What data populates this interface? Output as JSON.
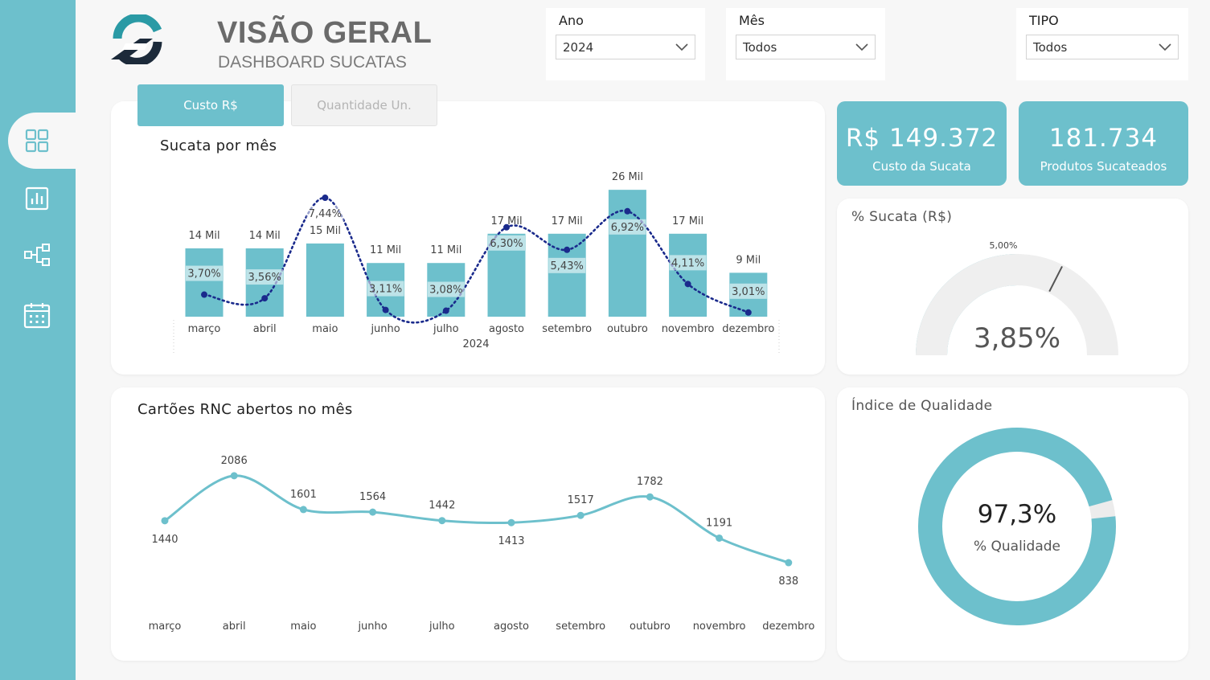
{
  "header": {
    "title": "VISÃO GERAL",
    "subtitle": "DASHBOARD SUCATAS"
  },
  "filters": {
    "ano": {
      "label": "Ano",
      "value": "2024"
    },
    "mes": {
      "label": "Mês",
      "value": "Todos"
    },
    "tipo": {
      "label": "TIPO",
      "value": "Todos"
    }
  },
  "sidebar": {
    "items": [
      {
        "icon": "dashboard-grid-icon",
        "active": true
      },
      {
        "icon": "bar-chart-icon",
        "active": false
      },
      {
        "icon": "hierarchy-icon",
        "active": false
      },
      {
        "icon": "calendar-icon",
        "active": false
      }
    ]
  },
  "tabs": {
    "custo": "Custo R$",
    "quantidade": "Quantidade Un."
  },
  "kpis": {
    "custo": {
      "value": "R$ 149.372",
      "label": "Custo da Sucata"
    },
    "produtos": {
      "value": "181.734",
      "label": "Produtos Sucateados"
    }
  },
  "gauge": {
    "title": "% Sucata (R$)",
    "value_label": "3,85%",
    "target_label": "5,00%",
    "value": 3.85,
    "target": 5.0,
    "max": 7.7
  },
  "donut": {
    "title": "Índice de Qualidade",
    "value_label": "97,3%",
    "sublabel": "% Qualidade",
    "value": 97.3
  },
  "colors": {
    "accent": "#6dc0cc",
    "line_dark": "#1a2a8c",
    "bg": "#f7f7f7"
  },
  "chart_data": [
    {
      "type": "bar",
      "title": "Sucata por mês",
      "xlabel": "2024",
      "categories": [
        "março",
        "abril",
        "maio",
        "junho",
        "julho",
        "agosto",
        "setembro",
        "outubro",
        "novembro",
        "dezembro"
      ],
      "series": [
        {
          "values": [
            14,
            14,
            15,
            11,
            11,
            17,
            17,
            26,
            17,
            9
          ]
        },
        {
          "values": [
            3.7,
            3.56,
            7.44,
            3.11,
            3.08,
            6.3,
            5.43,
            6.92,
            4.11,
            3.01
          ]
        }
      ],
      "bar_labels": [
        "14 Mil",
        "14 Mil",
        "15 Mil",
        "11 Mil",
        "11 Mil",
        "17 Mil",
        "17 Mil",
        "26 Mil",
        "17 Mil",
        "9 Mil"
      ],
      "pct_labels": [
        "3,70%",
        "3,56%",
        "7,44%",
        "3,11%",
        "3,08%",
        "6,30%",
        "5,43%",
        "6,92%",
        "4,11%",
        "3,01%"
      ],
      "ylim": [
        0,
        28
      ],
      "y2lim": [
        2.6,
        8.0
      ]
    },
    {
      "type": "line",
      "title": "Cartões RNC abertos no mês",
      "categories": [
        "março",
        "abril",
        "maio",
        "junho",
        "julho",
        "agosto",
        "setembro",
        "outubro",
        "novembro",
        "dezembro"
      ],
      "values": [
        1440,
        2086,
        1601,
        1564,
        1442,
        1413,
        1517,
        1782,
        1191,
        838
      ],
      "label_pos": [
        "below",
        "above",
        "above",
        "above",
        "above",
        "below",
        "above",
        "above",
        "above",
        "below"
      ],
      "ylim": [
        700,
        2200
      ]
    }
  ]
}
